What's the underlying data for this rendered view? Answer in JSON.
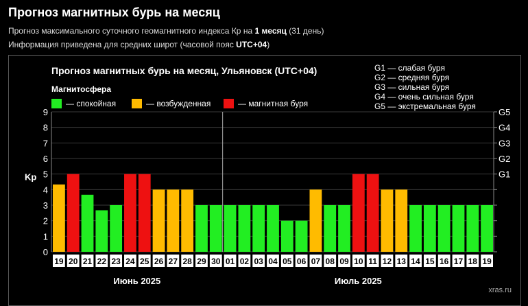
{
  "page": {
    "title": "Прогноз магнитных бурь на месяц",
    "subtitle1_pre": "Прогноз максимального суточного геомагнитного индекса Кр на ",
    "subtitle1_bold": "1 месяц",
    "subtitle1_post": " (31 день)",
    "subtitle2_pre": "Информация приведена для средних широт (часовой пояс ",
    "subtitle2_bold": "UTC+04",
    "subtitle2_post": ")"
  },
  "colors": {
    "quiet": "#22ee22",
    "active": "#ffbb00",
    "storm": "#ee1111",
    "grid": "#3a3a3a"
  },
  "chart_data": {
    "type": "bar",
    "title": "Прогноз магнитных бурь на месяц, Ульяновск (UTC+04)",
    "ylabel": "Kp",
    "ylim": [
      0,
      9
    ],
    "yticks": [
      "0",
      "1",
      "2",
      "3",
      "4",
      "5",
      "6",
      "7",
      "8",
      "9"
    ],
    "y2ticks": [
      {
        "level": 5,
        "label": "G1"
      },
      {
        "level": 6,
        "label": "G2"
      },
      {
        "level": 7,
        "label": "G3"
      },
      {
        "level": 8,
        "label": "G4"
      },
      {
        "level": 9,
        "label": "G5"
      }
    ],
    "legend_title": "Магнитосфера",
    "legend": [
      {
        "key": "quiet",
        "label": "— спокойная"
      },
      {
        "key": "active",
        "label": "— возбужденная"
      },
      {
        "key": "storm",
        "label": "— магнитная буря"
      }
    ],
    "storm_scale": [
      "G1 — слабая буря",
      "G2 — средняя буря",
      "G3 — сильная буря",
      "G4 — очень сильная буря",
      "G5 — экстремальная буря"
    ],
    "categories": [
      "19",
      "20",
      "21",
      "22",
      "23",
      "24",
      "25",
      "26",
      "27",
      "28",
      "29",
      "30",
      "01",
      "02",
      "03",
      "04",
      "05",
      "06",
      "07",
      "08",
      "09",
      "10",
      "11",
      "12",
      "13",
      "14",
      "15",
      "16",
      "17",
      "18",
      "19"
    ],
    "values": [
      4.33,
      5,
      3.67,
      2.67,
      3,
      5,
      5,
      4,
      4,
      4,
      3,
      3,
      3,
      3,
      3,
      3,
      2,
      2,
      4,
      3,
      3,
      5,
      5,
      4,
      4,
      3,
      3,
      3,
      3,
      3,
      3
    ],
    "levels": [
      "active",
      "storm",
      "quiet",
      "quiet",
      "quiet",
      "storm",
      "storm",
      "active",
      "active",
      "active",
      "quiet",
      "quiet",
      "quiet",
      "quiet",
      "quiet",
      "quiet",
      "quiet",
      "quiet",
      "active",
      "quiet",
      "quiet",
      "storm",
      "storm",
      "active",
      "active",
      "quiet",
      "quiet",
      "quiet",
      "quiet",
      "quiet",
      "quiet"
    ],
    "months": [
      {
        "label": "Июнь 2025",
        "start": 0,
        "end": 11
      },
      {
        "label": "Июль 2025",
        "start": 12,
        "end": 30
      }
    ],
    "watermark": "xras.ru"
  }
}
